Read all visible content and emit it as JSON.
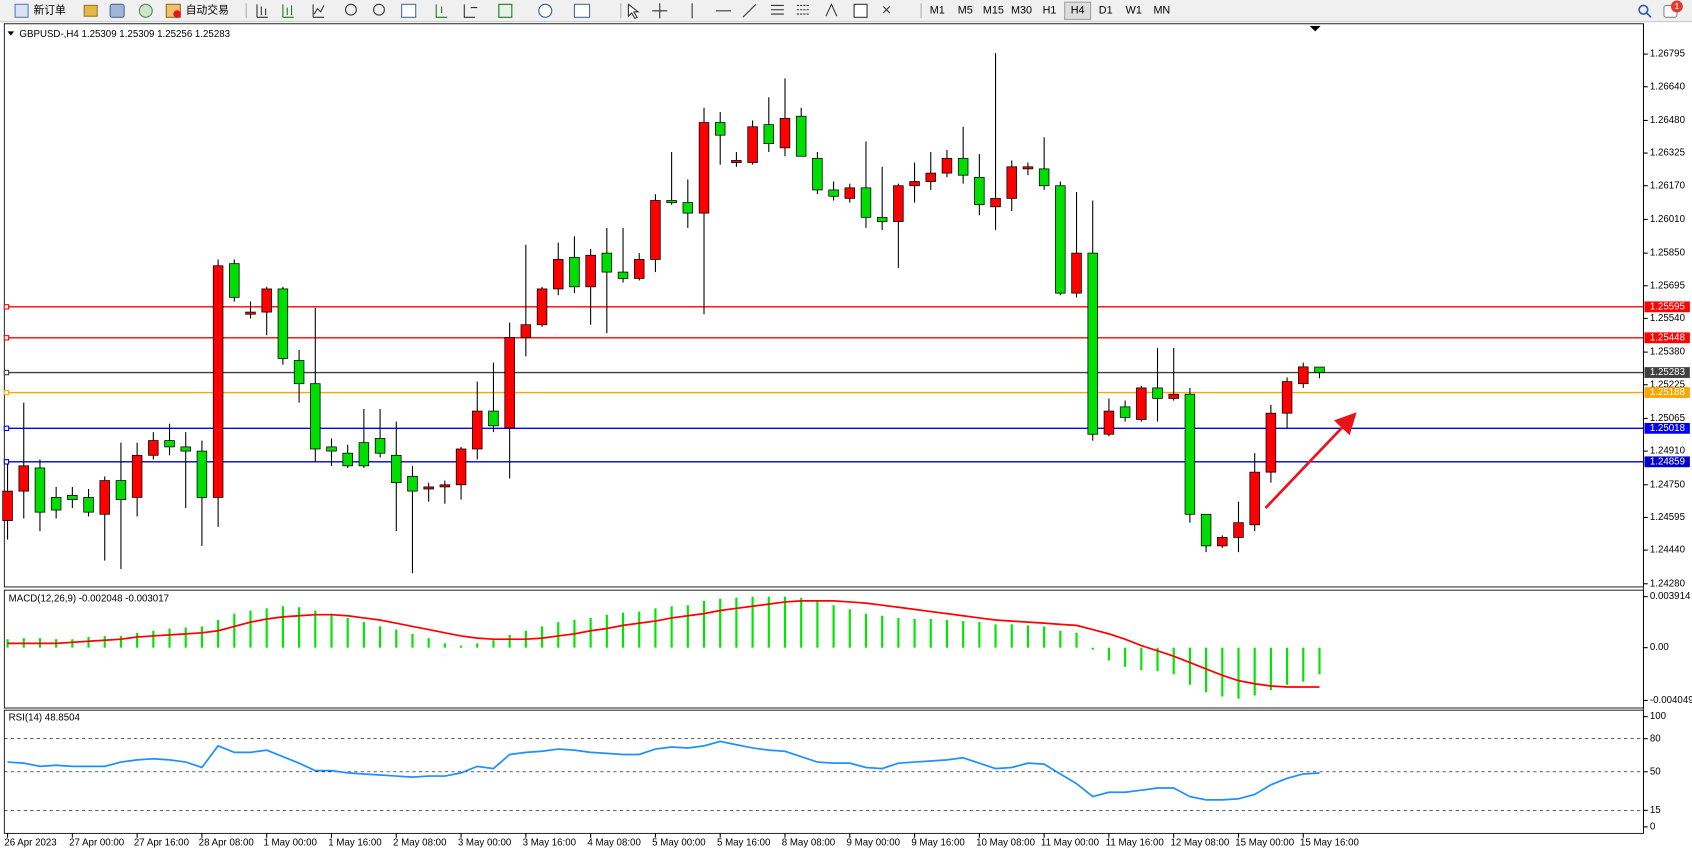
{
  "toolbar": {
    "buttons": [
      "新订单",
      "自动交易"
    ],
    "timeframes": [
      "M1",
      "M5",
      "M15",
      "M30",
      "H1",
      "H4",
      "D1",
      "W1",
      "MN"
    ],
    "active": "H4",
    "notifications": 1
  },
  "chart_data": [
    {
      "type": "candlestick",
      "title": "GBPUSD-,H4  1.25309 1.25309 1.25256 1.25283",
      "categories": [
        "26 Apr 2023",
        null,
        null,
        null,
        "27 Apr 00:00",
        null,
        null,
        null,
        "27 Apr 16:00",
        null,
        null,
        null,
        "28 Apr 08:00",
        null,
        null,
        null,
        "1 May 00:00",
        null,
        null,
        null,
        "1 May 16:00",
        null,
        null,
        null,
        "2 May 08:00",
        null,
        null,
        null,
        "3 May 00:00",
        null,
        null,
        null,
        "3 May 16:00",
        null,
        null,
        null,
        "4 May 08:00",
        null,
        null,
        null,
        "5 May 00:00",
        null,
        null,
        null,
        "5 May 16:00",
        null,
        null,
        null,
        "8 May 08:00",
        null,
        null,
        null,
        "9 May 00:00",
        null,
        null,
        null,
        "9 May 16:00",
        null,
        null,
        null,
        "10 May 08:00",
        null,
        null,
        null,
        "11 May 00:00",
        null,
        null,
        null,
        "11 May 16:00",
        null,
        null,
        null,
        "12 May 08:00",
        null,
        null,
        null,
        "15 May 00:00",
        null,
        null,
        null,
        "15 May 16:00",
        null
      ],
      "open": [
        1.2458,
        1.2472,
        1.2483,
        1.2469,
        1.247,
        1.2469,
        1.2461,
        1.2477,
        1.2469,
        1.2489,
        1.2496,
        1.2493,
        1.2491,
        1.2469,
        1.258,
        1.2556,
        1.2557,
        1.2568,
        1.2534,
        1.2523,
        1.2493,
        1.249,
        1.2495,
        1.2497,
        1.2489,
        1.2479,
        1.2473,
        1.2474,
        1.2475,
        1.2492,
        1.251,
        1.2502,
        1.2545,
        1.2551,
        1.2568,
        1.2583,
        1.2569,
        1.2585,
        1.2576,
        1.2573,
        1.2582,
        1.261,
        1.2609,
        1.2604,
        1.2647,
        1.2628,
        1.2628,
        1.2646,
        1.2635,
        1.265,
        1.263,
        1.2615,
        1.2611,
        1.2616,
        1.2602,
        1.26,
        1.2617,
        1.2619,
        1.2623,
        1.263,
        1.2621,
        1.2607,
        1.2611,
        1.2625,
        1.2625,
        1.2617,
        1.2566,
        1.2585,
        1.2499,
        1.2512,
        1.2506,
        1.2521,
        1.2516,
        1.2518,
        1.2461,
        1.2446,
        1.245,
        1.2456,
        1.2481,
        1.2509,
        1.2523,
        1.25309
      ],
      "high": [
        1.2485,
        1.2514,
        1.2487,
        1.2474,
        1.2474,
        1.2473,
        1.2479,
        1.2495,
        1.2495,
        1.25,
        1.2504,
        1.25,
        1.2496,
        1.2582,
        1.2582,
        1.2562,
        1.2569,
        1.2569,
        1.2539,
        1.2559,
        1.2497,
        1.2494,
        1.2511,
        1.2511,
        1.2505,
        1.2484,
        1.2476,
        1.2477,
        1.2493,
        1.2524,
        1.2533,
        1.2552,
        1.2589,
        1.2569,
        1.259,
        1.2593,
        1.2587,
        1.2597,
        1.2597,
        1.2585,
        1.2613,
        1.2633,
        1.262,
        1.2654,
        1.2652,
        1.2633,
        1.2648,
        1.2659,
        1.2668,
        1.2654,
        1.2633,
        1.2619,
        1.2618,
        1.2638,
        1.2626,
        1.2618,
        1.2628,
        1.2633,
        1.2634,
        1.2645,
        1.2632,
        1.268,
        1.2629,
        1.2628,
        1.264,
        1.2619,
        1.2614,
        1.261,
        1.2516,
        1.2515,
        1.2522,
        1.254,
        1.254,
        1.2521,
        1.2461,
        1.2451,
        1.2467,
        1.249,
        1.2513,
        1.2526,
        1.2533,
        1.25309
      ],
      "low": [
        1.2449,
        1.2459,
        1.2453,
        1.2459,
        1.2464,
        1.246,
        1.2439,
        1.2435,
        1.246,
        1.2487,
        1.2489,
        1.2464,
        1.2446,
        1.2455,
        1.2562,
        1.2554,
        1.2546,
        1.2532,
        1.2514,
        1.2486,
        1.2484,
        1.2483,
        1.2483,
        1.2488,
        1.2453,
        1.2433,
        1.2467,
        1.2466,
        1.2468,
        1.2487,
        1.25,
        1.2478,
        1.2536,
        1.255,
        1.2565,
        1.2566,
        1.2551,
        1.2547,
        1.2571,
        1.2572,
        1.2576,
        1.2608,
        1.2597,
        1.2556,
        1.2627,
        1.2626,
        1.2627,
        1.2633,
        1.2631,
        1.2631,
        1.2613,
        1.261,
        1.2609,
        1.2597,
        1.2596,
        1.2578,
        1.2609,
        1.2615,
        1.2621,
        1.2618,
        1.2603,
        1.2596,
        1.2605,
        1.2622,
        1.2615,
        1.2565,
        1.2564,
        1.2496,
        1.2498,
        1.2505,
        1.2505,
        1.2505,
        1.2515,
        1.2457,
        1.2443,
        1.2445,
        1.2443,
        1.2453,
        1.2476,
        1.2502,
        1.2521,
        1.25256
      ],
      "close": [
        1.2472,
        1.2484,
        1.2462,
        1.2463,
        1.2468,
        1.2462,
        1.2477,
        1.2468,
        1.2489,
        1.2496,
        1.2493,
        1.2491,
        1.2469,
        1.2579,
        1.2564,
        1.2557,
        1.2568,
        1.2535,
        1.2523,
        1.2492,
        1.2491,
        1.2484,
        1.2484,
        1.249,
        1.2476,
        1.2472,
        1.2474,
        1.2475,
        1.2492,
        1.251,
        1.2503,
        1.2545,
        1.2551,
        1.2568,
        1.2582,
        1.2569,
        1.2584,
        1.2576,
        1.2573,
        1.2582,
        1.261,
        1.2609,
        1.2604,
        1.2647,
        1.2641,
        1.2629,
        1.2645,
        1.2637,
        1.2649,
        1.2631,
        1.2615,
        1.2612,
        1.2616,
        1.2602,
        1.26,
        1.2617,
        1.2619,
        1.2623,
        1.263,
        1.2622,
        1.2608,
        1.2611,
        1.2626,
        1.2626,
        1.2617,
        1.2566,
        1.2585,
        1.2499,
        1.251,
        1.2507,
        1.2521,
        1.2516,
        1.2518,
        1.2461,
        1.2446,
        1.245,
        1.2457,
        1.2481,
        1.2509,
        1.2524,
        1.2531,
        1.25283
      ],
      "up_color": "#ff0000",
      "down_color": "#00dd00",
      "ylim": [
        1.24265,
        1.26939
      ],
      "yticks": [
        1.26795,
        {
          "value": 1.2664,
          "label": "1.26640"
        },
        {
          "value": 1.2648,
          "label": "1.26480"
        },
        1.26325,
        {
          "value": 1.2617,
          "label": "1.26170"
        },
        {
          "value": 1.2601,
          "label": "1.26010"
        },
        {
          "value": 1.2585,
          "label": "1.25850"
        },
        1.25695,
        {
          "value": 1.2554,
          "label": "1.25540"
        },
        {
          "value": 1.2538,
          "label": "1.25380"
        },
        1.25225,
        1.25065,
        {
          "value": 1.2491,
          "label": "1.24910"
        },
        {
          "value": 1.2475,
          "label": "1.24750"
        },
        1.24595,
        {
          "value": 1.2444,
          "label": "1.24440"
        },
        {
          "value": 1.2428,
          "label": "1.24280"
        }
      ],
      "grid": false,
      "hlines": [
        {
          "value": 1.25595,
          "color": "#ff0000"
        },
        {
          "value": 1.25448,
          "color": "#ff0000"
        },
        {
          "value": 1.25283,
          "color": "#404040"
        },
        {
          "value": 1.25188,
          "color": "#ffa500"
        },
        {
          "value": 1.25018,
          "color": "#0000ff"
        },
        {
          "value": 1.24859,
          "color": "#0000cd"
        }
      ]
    },
    {
      "type": "macd",
      "title": "MACD(12,26,9) -0.002048 -0.003017",
      "bars": {
        "color": "#00e600",
        "values": [
          0.00065,
          0.00073,
          0.00073,
          0.00065,
          0.00065,
          0.00082,
          0.0009,
          0.0009,
          0.00114,
          0.0013,
          0.00147,
          0.00155,
          0.00163,
          0.00212,
          0.00261,
          0.00285,
          0.00302,
          0.00318,
          0.0031,
          0.00285,
          0.00261,
          0.00228,
          0.00196,
          0.00163,
          0.00139,
          0.00106,
          0.00073,
          0.00033,
          0.00016,
          0.00033,
          0.00057,
          0.00098,
          0.0013,
          0.00163,
          0.00196,
          0.00212,
          0.00228,
          0.00253,
          0.00269,
          0.00277,
          0.00302,
          0.00318,
          0.00326,
          0.00359,
          0.00375,
          0.00383,
          0.00391,
          0.00391,
          0.00391,
          0.00383,
          0.00359,
          0.00326,
          0.00294,
          0.00261,
          0.00245,
          0.00228,
          0.0022,
          0.0022,
          0.00212,
          0.00204,
          0.00196,
          0.00179,
          0.00179,
          0.00171,
          0.00163,
          0.0013,
          0.00114,
          -0.00016,
          -0.00098,
          -0.00147,
          -0.00171,
          -0.00179,
          -0.00204,
          -0.00285,
          -0.00342,
          -0.00375,
          -0.00391,
          -0.00367,
          -0.00326,
          -0.00285,
          -0.00261,
          -0.002048
        ]
      },
      "line": {
        "color": "#ff0000",
        "values": [
          0.00033,
          0.00033,
          0.00033,
          0.00033,
          0.00041,
          0.00049,
          0.00057,
          0.00065,
          0.00082,
          0.0009,
          0.00098,
          0.00106,
          0.00114,
          0.0013,
          0.00163,
          0.00196,
          0.0022,
          0.00236,
          0.00245,
          0.00253,
          0.00253,
          0.00245,
          0.00228,
          0.00212,
          0.00188,
          0.00163,
          0.00139,
          0.00114,
          0.0009,
          0.00073,
          0.00065,
          0.00065,
          0.00065,
          0.00073,
          0.0009,
          0.00106,
          0.0013,
          0.00147,
          0.00171,
          0.00188,
          0.00204,
          0.00228,
          0.00245,
          0.00261,
          0.00285,
          0.00302,
          0.00318,
          0.00334,
          0.00351,
          0.00359,
          0.00359,
          0.00359,
          0.00351,
          0.00342,
          0.00326,
          0.0031,
          0.00294,
          0.00277,
          0.00261,
          0.00245,
          0.00228,
          0.00212,
          0.00204,
          0.00196,
          0.00188,
          0.00179,
          0.00171,
          0.00139,
          0.00106,
          0.00065,
          0.00016,
          -0.00024,
          -0.00065,
          -0.00114,
          -0.00163,
          -0.00212,
          -0.00253,
          -0.00277,
          -0.00294,
          -0.00302,
          -0.00302,
          -0.003017
        ]
      },
      "ylim": [
        -0.004049,
        0.003914
      ],
      "yticks": [
        0.003914,
        {
          "value": 0,
          "label": "0.00"
        },
        -0.004049
      ]
    },
    {
      "type": "line",
      "title": "RSI(14) 48.8504",
      "color": "#1e90ff",
      "values": [
        58.8,
        57.8,
        54.9,
        55.9,
        54.9,
        54.9,
        54.9,
        58.8,
        60.8,
        61.8,
        60.8,
        58.8,
        53.9,
        73.5,
        67.6,
        67.6,
        69.6,
        63.7,
        57.8,
        51.0,
        51.0,
        49.0,
        48.0,
        47.1,
        46.1,
        45.1,
        46.1,
        46.1,
        49.0,
        54.9,
        52.9,
        65.7,
        67.6,
        68.6,
        70.6,
        69.6,
        67.6,
        66.7,
        65.7,
        65.7,
        70.6,
        72.5,
        71.6,
        73.5,
        77.5,
        74.5,
        71.6,
        69.6,
        68.6,
        63.7,
        58.8,
        57.8,
        57.8,
        53.9,
        52.9,
        57.8,
        58.8,
        59.8,
        60.8,
        62.7,
        57.8,
        52.9,
        53.9,
        57.8,
        56.9,
        48.0,
        39.2,
        27.5,
        31.4,
        31.4,
        33.3,
        35.3,
        35.3,
        27.5,
        24.5,
        24.5,
        25.5,
        29.4,
        38.2,
        44.1,
        48.0,
        48.8504
      ],
      "ylim": [
        0,
        100
      ],
      "yticks": [
        100,
        80,
        50,
        15,
        0
      ],
      "grid": true
    }
  ]
}
